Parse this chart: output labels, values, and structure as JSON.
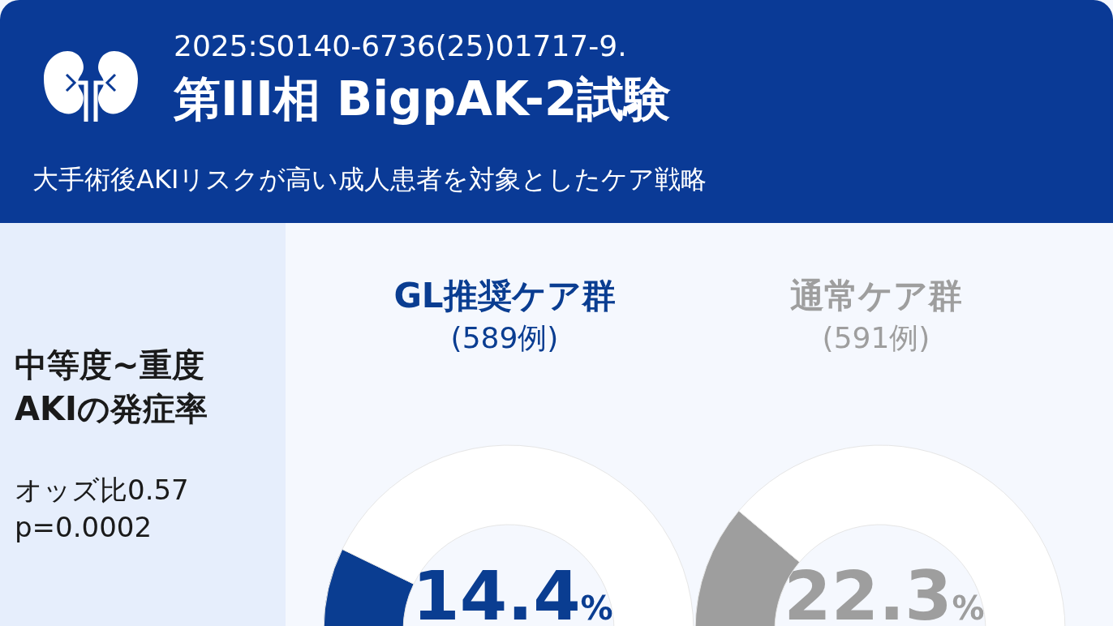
{
  "chart_data": [
    {
      "type": "other",
      "title": "第III相 BigpAK-2試験",
      "subtitle": "大手術後AKIリスクが高い成人患者を対象としたケア戦略",
      "annotations": [
        "2025:S0140-6736(25)01717-9.",
        "中等度~重度\nAKIの発症率",
        "オッズ比0.57\np=0.0002"
      ]
    },
    {
      "type": "donut",
      "title": "GL推奨ケア群",
      "subtitle": "(589例)",
      "categories": [
        null,
        null
      ],
      "values": [
        14.4,
        85.6
      ],
      "colors": [
        "#0a3d91",
        "#ffffff"
      ],
      "annotations": [
        "14.4%"
      ]
    },
    {
      "type": "donut",
      "title": "通常ケア群",
      "subtitle": "(591例)",
      "categories": [
        null,
        null
      ],
      "values": [
        22.3,
        77.7
      ],
      "colors": [
        "#9e9e9e",
        "#ffffff"
      ],
      "annotations": [
        "22.3%"
      ]
    }
  ]
}
